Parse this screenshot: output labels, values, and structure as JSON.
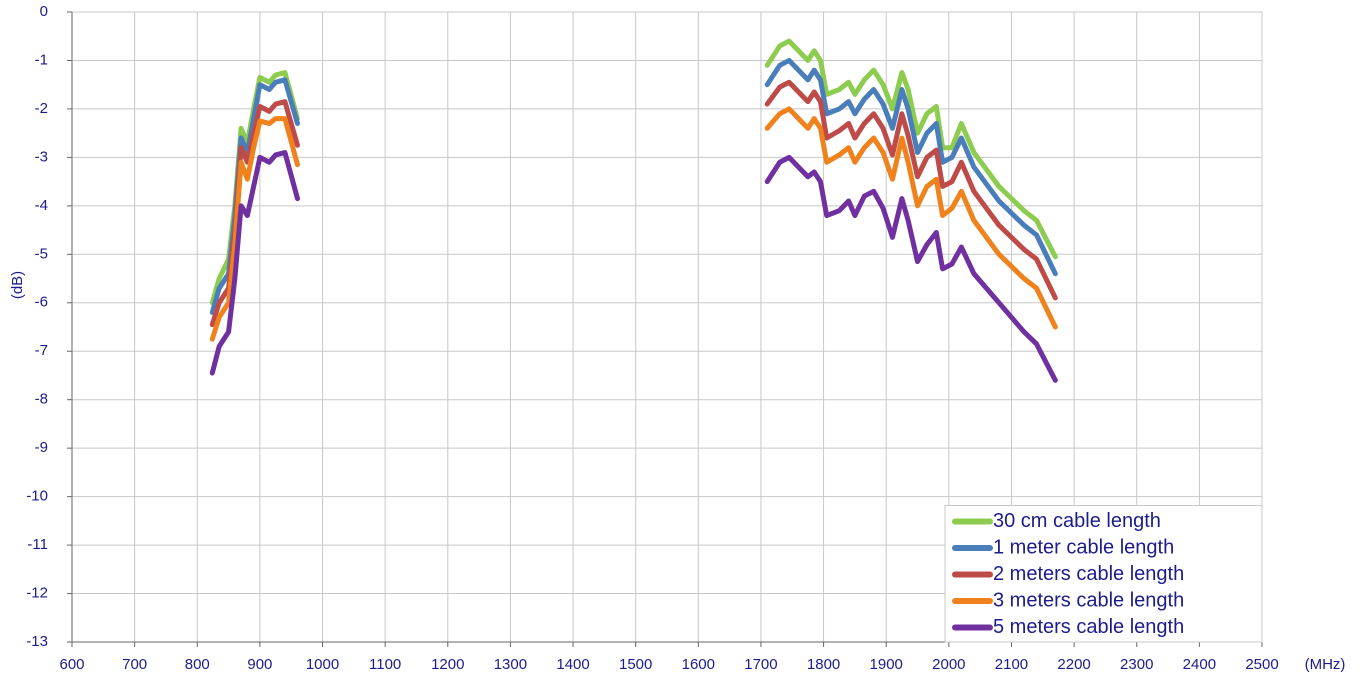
{
  "chart_data": {
    "type": "line",
    "x_label": "(MHz)",
    "y_label": "(dB)",
    "xlim": [
      600,
      2500
    ],
    "ylim": [
      -13,
      0
    ],
    "xticks": [
      600,
      700,
      800,
      900,
      1000,
      1100,
      1200,
      1300,
      1400,
      1500,
      1600,
      1700,
      1800,
      1900,
      2000,
      2100,
      2200,
      2300,
      2400,
      2500
    ],
    "yticks": [
      0,
      -1,
      -2,
      -3,
      -4,
      -5,
      -6,
      -7,
      -8,
      -9,
      -10,
      -11,
      -12,
      -13
    ],
    "grid": true,
    "legend": "lower right",
    "x": [
      824,
      835,
      850,
      860,
      870,
      880,
      890,
      900,
      915,
      925,
      940,
      960,
      null,
      1710,
      1730,
      1745,
      1760,
      1775,
      1785,
      1795,
      1805,
      1825,
      1840,
      1850,
      1865,
      1880,
      1895,
      1910,
      1925,
      1935,
      1950,
      1965,
      1980,
      1990,
      2005,
      2020,
      2040,
      2080,
      2120,
      2140,
      2170
    ],
    "series": [
      {
        "name": "30 cm cable length",
        "color": "#8dcc4f",
        "values": [
          -6.0,
          -5.5,
          -5.1,
          -4.0,
          -2.4,
          -2.7,
          -2.0,
          -1.35,
          -1.45,
          -1.3,
          -1.25,
          -2.2,
          null,
          -1.1,
          -0.7,
          -0.6,
          -0.8,
          -1.0,
          -0.8,
          -1.0,
          -1.7,
          -1.6,
          -1.45,
          -1.7,
          -1.4,
          -1.2,
          -1.5,
          -2.0,
          -1.25,
          -1.6,
          -2.5,
          -2.1,
          -1.95,
          -2.8,
          -2.8,
          -2.3,
          -2.9,
          -3.6,
          -4.1,
          -4.3,
          -5.05
        ]
      },
      {
        "name": "1 meter cable length",
        "color": "#4a7ebb",
        "values": [
          -6.2,
          -5.7,
          -5.4,
          -4.2,
          -2.6,
          -2.9,
          -2.2,
          -1.5,
          -1.6,
          -1.45,
          -1.4,
          -2.3,
          null,
          -1.5,
          -1.1,
          -1.0,
          -1.2,
          -1.4,
          -1.2,
          -1.4,
          -2.1,
          -2.0,
          -1.85,
          -2.1,
          -1.8,
          -1.6,
          -1.9,
          -2.4,
          -1.6,
          -2.0,
          -2.9,
          -2.5,
          -2.3,
          -3.1,
          -3.0,
          -2.6,
          -3.2,
          -3.9,
          -4.4,
          -4.6,
          -5.4
        ]
      },
      {
        "name": "2 meters cable length",
        "color": "#be4b48",
        "values": [
          -6.45,
          -6.0,
          -5.7,
          -4.5,
          -2.8,
          -3.1,
          -2.5,
          -1.95,
          -2.05,
          -1.9,
          -1.85,
          -2.75,
          null,
          -1.9,
          -1.55,
          -1.45,
          -1.65,
          -1.85,
          -1.65,
          -1.85,
          -2.6,
          -2.45,
          -2.3,
          -2.6,
          -2.3,
          -2.1,
          -2.4,
          -2.95,
          -2.1,
          -2.55,
          -3.4,
          -3.0,
          -2.85,
          -3.6,
          -3.5,
          -3.1,
          -3.7,
          -4.4,
          -4.9,
          -5.1,
          -5.9
        ]
      },
      {
        "name": "3 meters cable length",
        "color": "#f0821e",
        "values": [
          -6.75,
          -6.3,
          -6.0,
          -4.8,
          -3.1,
          -3.45,
          -2.8,
          -2.25,
          -2.3,
          -2.2,
          -2.2,
          -3.15,
          null,
          -2.4,
          -2.1,
          -2.0,
          -2.2,
          -2.4,
          -2.2,
          -2.4,
          -3.1,
          -2.95,
          -2.8,
          -3.1,
          -2.8,
          -2.6,
          -2.9,
          -3.45,
          -2.6,
          -3.1,
          -4.0,
          -3.6,
          -3.45,
          -4.2,
          -4.05,
          -3.7,
          -4.3,
          -5.0,
          -5.5,
          -5.7,
          -6.5
        ]
      },
      {
        "name": "5 meters cable length",
        "color": "#7030a0",
        "values": [
          -7.45,
          -6.9,
          -6.6,
          -5.5,
          -4.0,
          -4.2,
          -3.6,
          -3.0,
          -3.1,
          -2.95,
          -2.9,
          -3.85,
          null,
          -3.5,
          -3.1,
          -3.0,
          -3.2,
          -3.4,
          -3.3,
          -3.5,
          -4.2,
          -4.1,
          -3.9,
          -4.2,
          -3.8,
          -3.7,
          -4.05,
          -4.65,
          -3.85,
          -4.3,
          -5.15,
          -4.8,
          -4.55,
          -5.3,
          -5.2,
          -4.85,
          -5.4,
          -6.0,
          -6.6,
          -6.85,
          -7.6
        ]
      }
    ]
  }
}
